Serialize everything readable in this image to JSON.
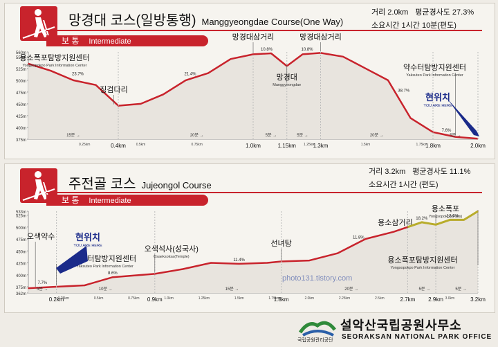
{
  "colors": {
    "brand_red": "#c8232c",
    "profile_fill": "#e8e4de",
    "profile_line": "#c8232c",
    "falls_line": "#b8ad2c",
    "you_are_here": "#1b2b8a"
  },
  "course1": {
    "title_ko": "망경대 코스(일방통행)",
    "title_en": "Manggyeongdae Course(One Way)",
    "level_ko": "보 통",
    "level_en": "Intermediate",
    "info": {
      "distance": "거리 2.0km",
      "slope": "평균경사도 27.3%",
      "time": "소요시간 1시간 10분(편도)"
    },
    "you_are_here_ko": "현위치",
    "you_are_here_en": "YOU ARE HERE",
    "places": [
      {
        "ko": "용소폭포탐방지원센터",
        "en": "Yongsopokpo Park Information Center"
      },
      {
        "ko": "징검다리",
        "en": ""
      },
      {
        "ko": "망경대삼거리",
        "en": ""
      },
      {
        "ko": "망경대",
        "en": "Manggyeongdae"
      },
      {
        "ko": "망경대삼거리",
        "en": ""
      },
      {
        "ko": "약수터탐방지원센터",
        "en": "Yaksuteo Park Information Center"
      }
    ]
  },
  "course2": {
    "title_ko": "주전골 코스",
    "title_en": "Jujeongol Course",
    "level_ko": "보 통",
    "level_en": "Intermediate",
    "info": {
      "distance": "거리 3.2km",
      "slope": "평균경사도 11.1%",
      "time": "소요시간 1시간 (편도)"
    },
    "you_are_here_ko": "현위치",
    "you_are_here_en": "YOU ARE HERE",
    "places": [
      {
        "ko": "오색약수",
        "en": ""
      },
      {
        "ko": "약수터탐방지원센터",
        "en": "Yaksuteo Park Information Center"
      },
      {
        "ko": "오색석사(성국사)",
        "en": "Osaeksoksa(Temple)"
      },
      {
        "ko": "선녀탕",
        "en": ""
      },
      {
        "ko": "용소삼거리",
        "en": ""
      },
      {
        "ko": "용소폭포",
        "en": "Yongsopokpo(Falls)"
      },
      {
        "ko": "용소폭포탐방지원센터",
        "en": "Yongsopokpo Park Information Center"
      }
    ]
  },
  "footer": {
    "org_ko": "설악산국립공원사무소",
    "org_en": "SEORAKSAN NATIONAL PARK OFFICE",
    "org_small": "국립공원관리공단",
    "watermark": "photo131.tistory.com"
  },
  "chart_data": [
    {
      "type": "area",
      "title": "망경대 코스(일방통행)",
      "y_unit": "m",
      "y_ticks": [
        "560m",
        "550m",
        "525m",
        "500m",
        "475m",
        "450m",
        "425m",
        "400m",
        "375m"
      ],
      "ylim": [
        375,
        560
      ],
      "x_ticks_major": [
        "0.4km",
        "1.0km",
        "1.15km",
        "1.3km",
        "1.8km",
        "2.0km"
      ],
      "x_ticks_minor": [
        "0.25km",
        "0.5km",
        "0.75km",
        "1.25km",
        "1.5km",
        "1.75km"
      ],
      "x": [
        0,
        0.1,
        0.2,
        0.3,
        0.4,
        0.5,
        0.6,
        0.7,
        0.8,
        0.9,
        1.0,
        1.08,
        1.15,
        1.22,
        1.3,
        1.4,
        1.5,
        1.6,
        1.7,
        1.8,
        1.9,
        2.0
      ],
      "y": [
        535,
        520,
        500,
        490,
        446,
        450,
        470,
        500,
        515,
        545,
        555,
        557,
        530,
        555,
        558,
        550,
        525,
        500,
        420,
        390,
        380,
        376
      ],
      "grade_labels": [
        "23.7%",
        "21.4%",
        "10.8%",
        "10.8%",
        "38.7%",
        "7.6%"
      ],
      "time_labels": [
        "15분",
        "20분",
        "5분",
        "5분",
        "20분",
        "5분"
      ]
    },
    {
      "type": "area",
      "title": "주전골 코스",
      "y_unit": "m",
      "y_ticks": [
        "533m",
        "525m",
        "500m",
        "475m",
        "450m",
        "425m",
        "400m",
        "375m",
        "362m"
      ],
      "ylim": [
        362,
        533
      ],
      "x_ticks_major": [
        "0.2km",
        "0.9km",
        "1.8km",
        "2.7km",
        "2.9km",
        "3.2km"
      ],
      "x_ticks_minor": [
        "0.25km",
        "0.5km",
        "0.75km",
        "1.0km",
        "1.25km",
        "1.5km",
        "1.75km",
        "2.0km",
        "2.25km",
        "2.5km",
        "3.0km"
      ],
      "x": [
        0,
        0.2,
        0.4,
        0.6,
        0.9,
        1.1,
        1.3,
        1.5,
        1.7,
        1.8,
        2.0,
        2.2,
        2.4,
        2.6,
        2.7,
        2.8,
        2.9,
        3.0,
        3.1,
        3.2
      ],
      "y": [
        372,
        375,
        378,
        395,
        402,
        412,
        425,
        423,
        425,
        428,
        430,
        445,
        475,
        490,
        500,
        510,
        505,
        515,
        515,
        533
      ],
      "grade_labels": [
        "7.7%",
        "8.6%",
        "11.4%",
        "11.8%",
        "18.2%",
        "13.0%"
      ],
      "time_labels": [
        "5분",
        "10분",
        "15분",
        "20분",
        "5분",
        "5분"
      ]
    }
  ]
}
